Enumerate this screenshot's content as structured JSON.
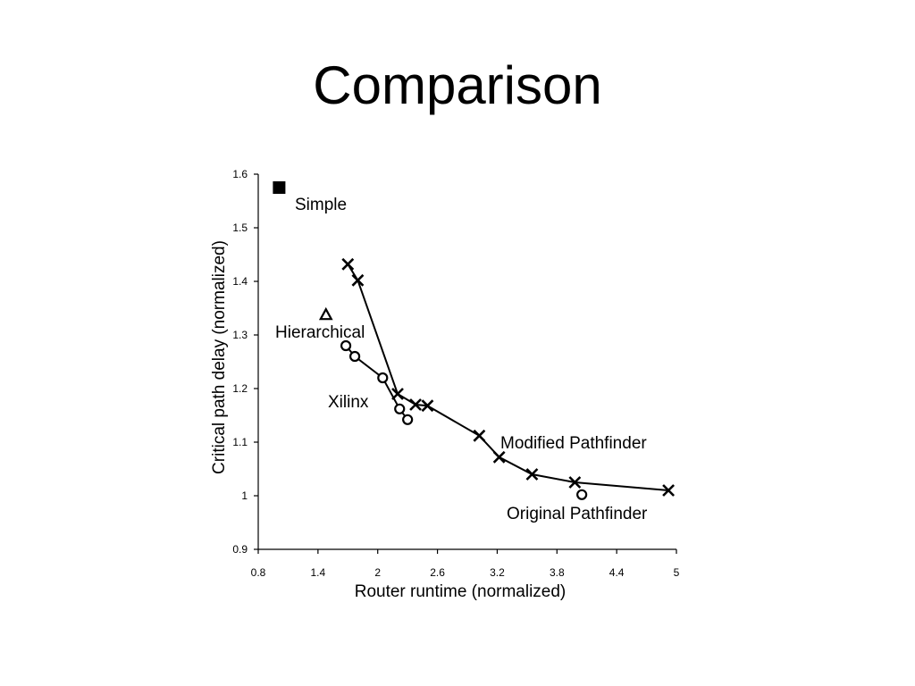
{
  "slide": {
    "title": "Comparison"
  },
  "chart_data": {
    "type": "scatter",
    "title": "",
    "xlabel": "Router runtime (normalized)",
    "ylabel": "Critical path delay (normalized)",
    "xlim": [
      0.8,
      5
    ],
    "ylim": [
      0.9,
      1.6
    ],
    "xticks": [
      0.8,
      1.4,
      2,
      2.6,
      3.2,
      3.8,
      4.4,
      5
    ],
    "xtick_labels": [
      "0.8",
      "1.4",
      "2",
      "2.6",
      "3.2",
      "3.8",
      "4.4",
      "5"
    ],
    "yticks": [
      0.9,
      1,
      1.1,
      1.2,
      1.3,
      1.4,
      1.5,
      1.6
    ],
    "ytick_labels": [
      "0.9",
      "1",
      "1.1",
      "1.2",
      "1.3",
      "1.4",
      "1.5",
      "1.6"
    ],
    "grid": false,
    "legend": "none",
    "series": [
      {
        "name": "Modified Pathfinder",
        "marker": "x",
        "connected": true,
        "points": [
          [
            1.7,
            1.432
          ],
          [
            1.8,
            1.402
          ],
          [
            2.2,
            1.19
          ],
          [
            2.38,
            1.17
          ],
          [
            2.5,
            1.168
          ],
          [
            3.02,
            1.112
          ],
          [
            3.22,
            1.072
          ],
          [
            3.55,
            1.04
          ],
          [
            3.98,
            1.025
          ],
          [
            4.92,
            1.01
          ]
        ]
      },
      {
        "name": "Original Pathfinder",
        "marker": "o",
        "connected": false,
        "points": [
          [
            4.05,
            1.002
          ]
        ]
      },
      {
        "name": "Xilinx",
        "marker": "o",
        "connected": true,
        "points": [
          [
            1.68,
            1.28
          ],
          [
            1.77,
            1.26
          ],
          [
            2.05,
            1.22
          ],
          [
            2.22,
            1.162
          ],
          [
            2.3,
            1.142
          ]
        ]
      },
      {
        "name": "Hierarchical",
        "marker": "triangle",
        "connected": false,
        "points": [
          [
            1.48,
            1.338
          ]
        ]
      },
      {
        "name": "Simple",
        "marker": "square",
        "connected": false,
        "points": [
          [
            1.01,
            1.575
          ]
        ]
      }
    ]
  }
}
